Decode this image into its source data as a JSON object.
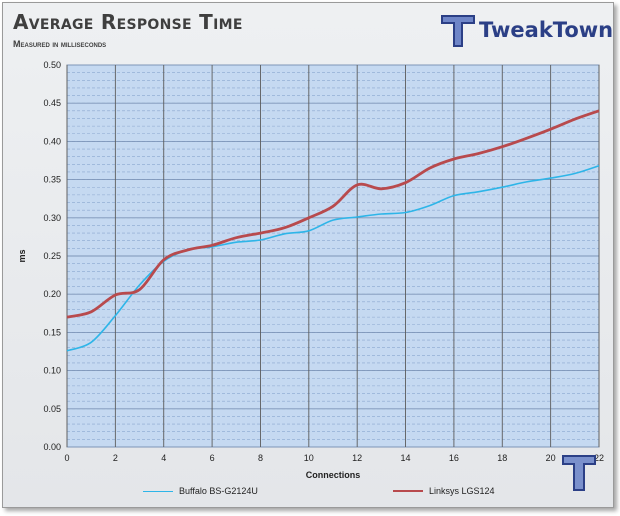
{
  "header": {
    "title": "Average Response Time",
    "subtitle": "Measured in milliseconds",
    "logo_text": "TweakTown"
  },
  "colors": {
    "plot_background": "#c5d9f1",
    "series_buffalo": "#2eb5e8",
    "series_linksys": "#b84a4d",
    "logo_blue": "#2b3f86"
  },
  "chart_data": {
    "type": "line",
    "title": "Average Response Time",
    "subtitle": "Measured in milliseconds",
    "xlabel": "Connections",
    "ylabel": "ms",
    "xlim": [
      0,
      22
    ],
    "ylim": [
      0,
      0.5
    ],
    "x_ticks": [
      "0",
      "2",
      "4",
      "6",
      "8",
      "10",
      "12",
      "14",
      "16",
      "18",
      "20",
      "22"
    ],
    "y_ticks": [
      "0.00",
      "0.05",
      "0.10",
      "0.15",
      "0.20",
      "0.25",
      "0.30",
      "0.35",
      "0.40",
      "0.45",
      "0.50"
    ],
    "grid": true,
    "legend_position": "bottom",
    "x": [
      0,
      1,
      2,
      3,
      4,
      5,
      6,
      7,
      8,
      9,
      10,
      11,
      12,
      13,
      14,
      15,
      16,
      17,
      18,
      19,
      20,
      21,
      22
    ],
    "series": [
      {
        "name": "Buffalo BS-G2124U",
        "values": [
          0.126,
          0.137,
          0.172,
          0.212,
          0.243,
          0.258,
          0.262,
          0.268,
          0.271,
          0.279,
          0.283,
          0.297,
          0.301,
          0.305,
          0.307,
          0.316,
          0.329,
          0.334,
          0.34,
          0.347,
          0.352,
          0.358,
          0.368
        ]
      },
      {
        "name": "Linksys LGS124",
        "values": [
          0.17,
          0.177,
          0.199,
          0.206,
          0.245,
          0.258,
          0.264,
          0.274,
          0.28,
          0.287,
          0.3,
          0.315,
          0.343,
          0.338,
          0.346,
          0.365,
          0.377,
          0.384,
          0.393,
          0.404,
          0.416,
          0.429,
          0.44
        ]
      }
    ]
  }
}
